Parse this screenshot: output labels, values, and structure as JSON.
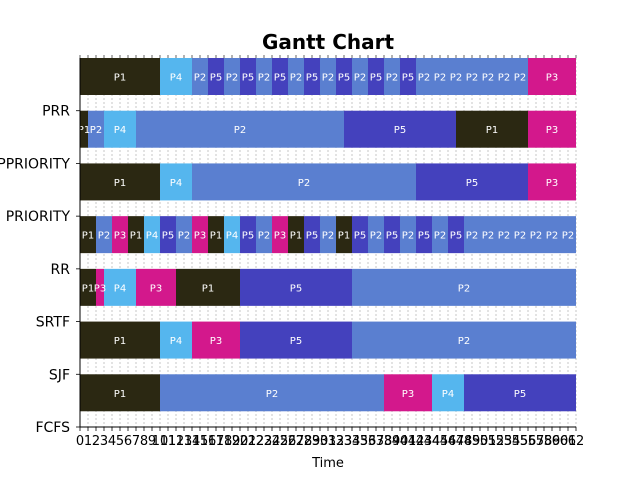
{
  "chart_data": {
    "type": "gantt",
    "title": "Gantt Chart",
    "xlabel": "Time",
    "xlim": [
      0,
      62
    ],
    "x_ticks": [
      "0",
      "1",
      "2",
      "3",
      "4",
      "5",
      "6",
      "7",
      "8",
      "9",
      "10",
      "11",
      "12",
      "13",
      "14",
      "15",
      "16",
      "17",
      "18",
      "19",
      "20",
      "21",
      "22",
      "23",
      "24",
      "25",
      "26",
      "27",
      "28",
      "29",
      "30",
      "31",
      "32",
      "33",
      "34",
      "35",
      "36",
      "37",
      "38",
      "39",
      "40",
      "41",
      "42",
      "43",
      "44",
      "45",
      "46",
      "47",
      "48",
      "49",
      "50",
      "51",
      "52",
      "53",
      "54",
      "55",
      "56",
      "57",
      "58",
      "59",
      "60",
      "61",
      "62"
    ],
    "grid": true,
    "process_colors": {
      "P1": "#2b2812",
      "P2": "#5a7fd0",
      "P3": "#d3188c",
      "P4": "#55b6ee",
      "P5": "#4441bd"
    },
    "rows": [
      {
        "name": "PRR",
        "segments": [
          {
            "p": "P1",
            "start": 0,
            "end": 10
          },
          {
            "p": "P4",
            "start": 10,
            "end": 14
          },
          {
            "p": "P2",
            "start": 14,
            "end": 16
          },
          {
            "p": "P5",
            "start": 16,
            "end": 18
          },
          {
            "p": "P2",
            "start": 18,
            "end": 20
          },
          {
            "p": "P5",
            "start": 20,
            "end": 22
          },
          {
            "p": "P2",
            "start": 22,
            "end": 24
          },
          {
            "p": "P5",
            "start": 24,
            "end": 26
          },
          {
            "p": "P2",
            "start": 26,
            "end": 28
          },
          {
            "p": "P5",
            "start": 28,
            "end": 30
          },
          {
            "p": "P2",
            "start": 30,
            "end": 32
          },
          {
            "p": "P5",
            "start": 32,
            "end": 34
          },
          {
            "p": "P2",
            "start": 34,
            "end": 36
          },
          {
            "p": "P5",
            "start": 36,
            "end": 38
          },
          {
            "p": "P2",
            "start": 38,
            "end": 40
          },
          {
            "p": "P5",
            "start": 40,
            "end": 42
          },
          {
            "p": "P2",
            "start": 42,
            "end": 44
          },
          {
            "p": "P2",
            "start": 44,
            "end": 46
          },
          {
            "p": "P2",
            "start": 46,
            "end": 48
          },
          {
            "p": "P2",
            "start": 48,
            "end": 50
          },
          {
            "p": "P2",
            "start": 50,
            "end": 52
          },
          {
            "p": "P2",
            "start": 52,
            "end": 54
          },
          {
            "p": "P2",
            "start": 54,
            "end": 56
          },
          {
            "p": "P3",
            "start": 56,
            "end": 62
          }
        ]
      },
      {
        "name": "PPRIORITY",
        "segments": [
          {
            "p": "P1",
            "start": 0,
            "end": 1
          },
          {
            "p": "P2",
            "start": 1,
            "end": 3
          },
          {
            "p": "P4",
            "start": 3,
            "end": 7
          },
          {
            "p": "P2",
            "start": 7,
            "end": 33
          },
          {
            "p": "P5",
            "start": 33,
            "end": 47
          },
          {
            "p": "P1",
            "start": 47,
            "end": 56
          },
          {
            "p": "P3",
            "start": 56,
            "end": 62
          }
        ]
      },
      {
        "name": "PRIORITY",
        "segments": [
          {
            "p": "P1",
            "start": 0,
            "end": 10
          },
          {
            "p": "P4",
            "start": 10,
            "end": 14
          },
          {
            "p": "P2",
            "start": 14,
            "end": 42
          },
          {
            "p": "P5",
            "start": 42,
            "end": 56
          },
          {
            "p": "P3",
            "start": 56,
            "end": 62
          }
        ]
      },
      {
        "name": "RR",
        "segments": [
          {
            "p": "P1",
            "start": 0,
            "end": 2
          },
          {
            "p": "P2",
            "start": 2,
            "end": 4
          },
          {
            "p": "P3",
            "start": 4,
            "end": 6
          },
          {
            "p": "P1",
            "start": 6,
            "end": 8
          },
          {
            "p": "P4",
            "start": 8,
            "end": 10
          },
          {
            "p": "P5",
            "start": 10,
            "end": 12
          },
          {
            "p": "P2",
            "start": 12,
            "end": 14
          },
          {
            "p": "P3",
            "start": 14,
            "end": 16
          },
          {
            "p": "P1",
            "start": 16,
            "end": 18
          },
          {
            "p": "P4",
            "start": 18,
            "end": 20
          },
          {
            "p": "P5",
            "start": 20,
            "end": 22
          },
          {
            "p": "P2",
            "start": 22,
            "end": 24
          },
          {
            "p": "P3",
            "start": 24,
            "end": 26
          },
          {
            "p": "P1",
            "start": 26,
            "end": 28
          },
          {
            "p": "P5",
            "start": 28,
            "end": 30
          },
          {
            "p": "P2",
            "start": 30,
            "end": 32
          },
          {
            "p": "P1",
            "start": 32,
            "end": 34
          },
          {
            "p": "P5",
            "start": 34,
            "end": 36
          },
          {
            "p": "P2",
            "start": 36,
            "end": 38
          },
          {
            "p": "P5",
            "start": 38,
            "end": 40
          },
          {
            "p": "P2",
            "start": 40,
            "end": 42
          },
          {
            "p": "P5",
            "start": 42,
            "end": 44
          },
          {
            "p": "P2",
            "start": 44,
            "end": 46
          },
          {
            "p": "P5",
            "start": 46,
            "end": 48
          },
          {
            "p": "P2",
            "start": 48,
            "end": 50
          },
          {
            "p": "P2",
            "start": 50,
            "end": 52
          },
          {
            "p": "P2",
            "start": 52,
            "end": 54
          },
          {
            "p": "P2",
            "start": 54,
            "end": 56
          },
          {
            "p": "P2",
            "start": 56,
            "end": 58
          },
          {
            "p": "P2",
            "start": 58,
            "end": 60
          },
          {
            "p": "P2",
            "start": 60,
            "end": 62
          }
        ]
      },
      {
        "name": "SRTF",
        "segments": [
          {
            "p": "P1",
            "start": 0,
            "end": 2
          },
          {
            "p": "P3",
            "start": 2,
            "end": 3
          },
          {
            "p": "P4",
            "start": 3,
            "end": 7
          },
          {
            "p": "P3",
            "start": 7,
            "end": 12
          },
          {
            "p": "P1",
            "start": 12,
            "end": 20
          },
          {
            "p": "P5",
            "start": 20,
            "end": 34
          },
          {
            "p": "P2",
            "start": 34,
            "end": 62
          }
        ]
      },
      {
        "name": "SJF",
        "segments": [
          {
            "p": "P1",
            "start": 0,
            "end": 10
          },
          {
            "p": "P4",
            "start": 10,
            "end": 14
          },
          {
            "p": "P3",
            "start": 14,
            "end": 20
          },
          {
            "p": "P5",
            "start": 20,
            "end": 34
          },
          {
            "p": "P2",
            "start": 34,
            "end": 62
          }
        ]
      },
      {
        "name": "FCFS",
        "segments": [
          {
            "p": "P1",
            "start": 0,
            "end": 10
          },
          {
            "p": "P2",
            "start": 10,
            "end": 38
          },
          {
            "p": "P3",
            "start": 38,
            "end": 44
          },
          {
            "p": "P4",
            "start": 44,
            "end": 48
          },
          {
            "p": "P5",
            "start": 48,
            "end": 62
          }
        ]
      }
    ]
  }
}
